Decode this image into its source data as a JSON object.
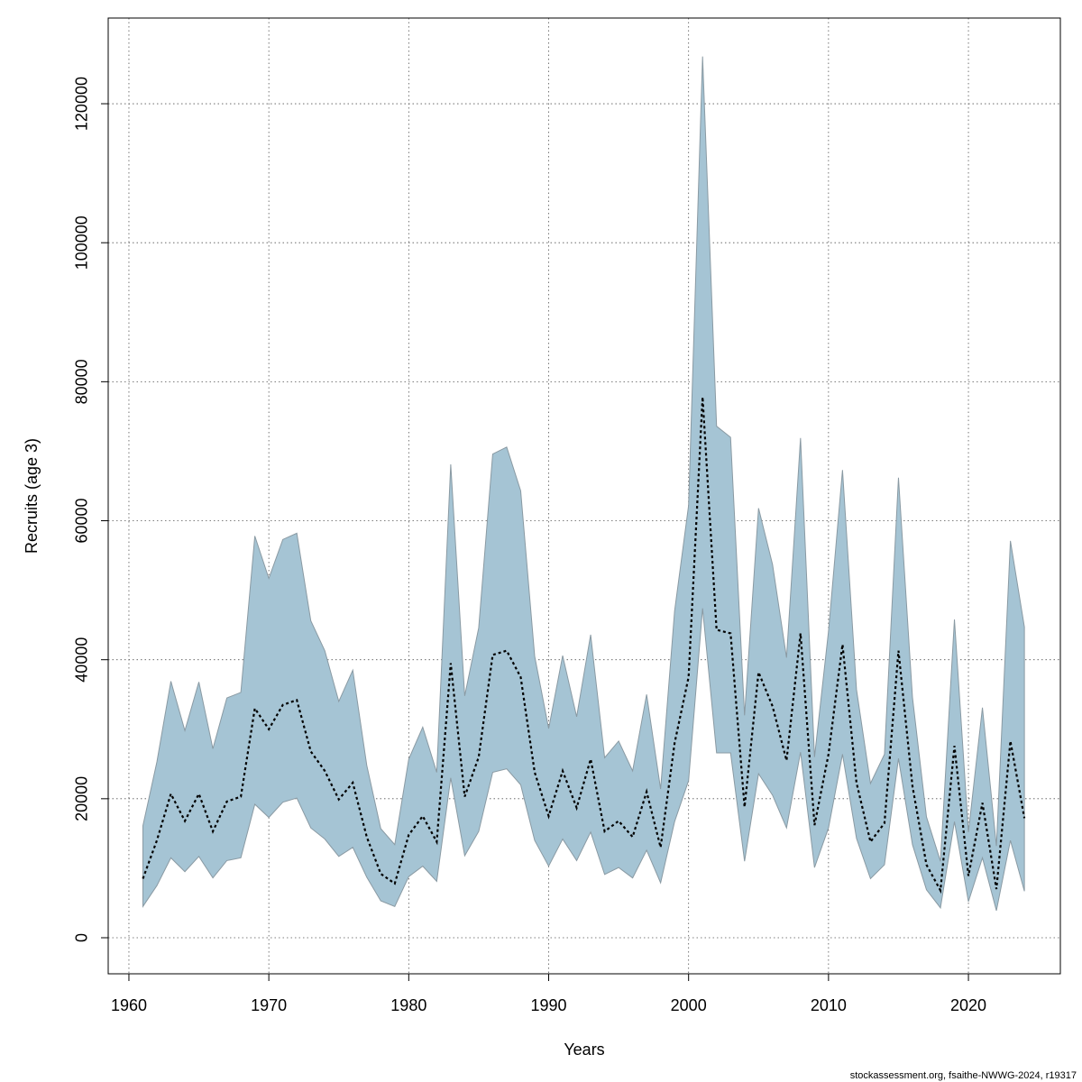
{
  "chart_data": {
    "type": "line",
    "x_label": "Years",
    "y_label": "Recruits (age 3)",
    "footer": "stockassessment.org, fsaithe-NWWG-2024, r19317",
    "x": [
      1961,
      1962,
      1963,
      1964,
      1965,
      1966,
      1967,
      1968,
      1969,
      1970,
      1971,
      1972,
      1973,
      1974,
      1975,
      1976,
      1977,
      1978,
      1979,
      1980,
      1981,
      1982,
      1983,
      1984,
      1985,
      1986,
      1987,
      1988,
      1989,
      1990,
      1991,
      1992,
      1993,
      1994,
      1995,
      1996,
      1997,
      1998,
      1999,
      2000,
      2001,
      2002,
      2003,
      2004,
      2005,
      2006,
      2007,
      2008,
      2009,
      2010,
      2011,
      2012,
      2013,
      2014,
      2015,
      2016,
      2017,
      2018,
      2019,
      2020,
      2021,
      2022,
      2023,
      2024
    ],
    "values": [
      8500,
      14000,
      20700,
      16800,
      20700,
      15300,
      19600,
      20300,
      33000,
      30000,
      33500,
      34200,
      26800,
      24000,
      19900,
      22300,
      14500,
      9200,
      7800,
      14800,
      17500,
      13800,
      39500,
      20300,
      26000,
      40700,
      41300,
      37500,
      23800,
      17500,
      24000,
      18700,
      25700,
      15300,
      16800,
      14500,
      21000,
      13000,
      28000,
      37500,
      77800,
      44300,
      43800,
      18800,
      38200,
      33300,
      25500,
      43800,
      16200,
      26400,
      42200,
      22300,
      13800,
      16500,
      41300,
      21800,
      10500,
      6800,
      27600,
      8900,
      19400,
      7000,
      28300,
      17200
    ],
    "lower": [
      4500,
      7500,
      11500,
      9500,
      11700,
      8600,
      11100,
      11500,
      19200,
      17300,
      19500,
      20100,
      15800,
      14200,
      11700,
      13000,
      8700,
      5300,
      4500,
      8800,
      10300,
      8100,
      23000,
      11800,
      15300,
      23800,
      24300,
      22000,
      14000,
      10300,
      14200,
      11100,
      15200,
      9100,
      10100,
      8600,
      12600,
      7900,
      16700,
      22600,
      47400,
      26600,
      26600,
      11000,
      23600,
      20500,
      15800,
      26700,
      10100,
      15800,
      26400,
      14300,
      8500,
      10500,
      25800,
      13400,
      6900,
      4300,
      16700,
      5200,
      11500,
      3900,
      14000,
      6700
    ],
    "upper": [
      16100,
      25300,
      36900,
      29800,
      36800,
      27200,
      34500,
      35300,
      57800,
      51700,
      57300,
      58200,
      45600,
      41300,
      34000,
      38500,
      24800,
      15700,
      13400,
      25700,
      30300,
      23800,
      68100,
      34800,
      44600,
      69600,
      70600,
      64300,
      40500,
      30100,
      40600,
      31800,
      43600,
      25900,
      28300,
      24000,
      35000,
      21400,
      47000,
      62200,
      126800,
      73600,
      72000,
      32000,
      61800,
      53700,
      40300,
      71900,
      26000,
      44100,
      67300,
      35700,
      22200,
      26400,
      66200,
      34600,
      17400,
      11000,
      45800,
      15200,
      33100,
      13200,
      57100,
      44700
    ],
    "line_color": "#000000",
    "band_color": "#a5c4d4",
    "xlim": [
      1958.52,
      2026.57
    ],
    "ylim": [
      -5190,
      132330
    ],
    "xticks": [
      1960,
      1970,
      1980,
      1990,
      2000,
      2010,
      2020
    ],
    "yticks": [
      0,
      20000,
      40000,
      60000,
      80000,
      100000,
      120000
    ],
    "grid": true
  }
}
